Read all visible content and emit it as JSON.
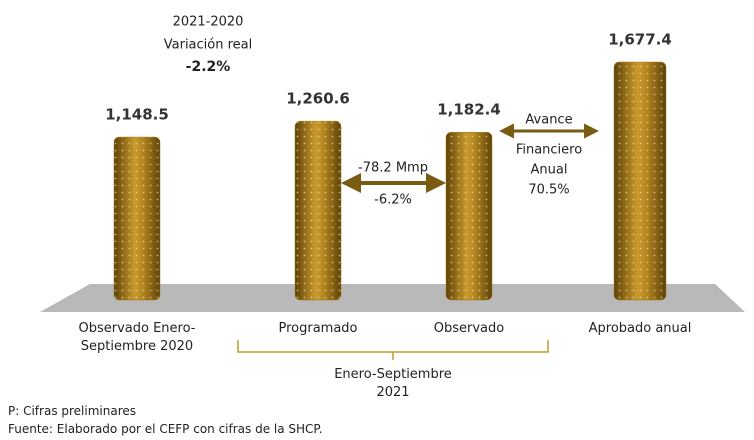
{
  "chart_data": {
    "type": "bar",
    "categories": [
      "Observado Enero-Septiembre 2020",
      "Programado",
      "Observado",
      "Aprobado anual"
    ],
    "values": [
      1148.5,
      1260.6,
      1182.4,
      1677.4
    ],
    "value_labels": [
      "1,148.5",
      "1,260.6",
      "1,182.4",
      "1,677.4"
    ],
    "color": "#a67c1a",
    "group_label": "Enero-Septiembre 2021",
    "annotations": {
      "variation_period": "2021-2020",
      "variation_title": "Variación real",
      "variation_value": "-2.2%",
      "gap_amount": "-78.2 Mmp",
      "gap_percent": "-6.2%",
      "progress_title": "Avance",
      "progress_line2": "Financiero",
      "progress_line3": "Anual",
      "progress_value": "70.5%"
    },
    "notes": [
      "P: Cifras preliminares",
      "Fuente: Elaborado por el CEFP con cifras de la SHCP."
    ]
  }
}
